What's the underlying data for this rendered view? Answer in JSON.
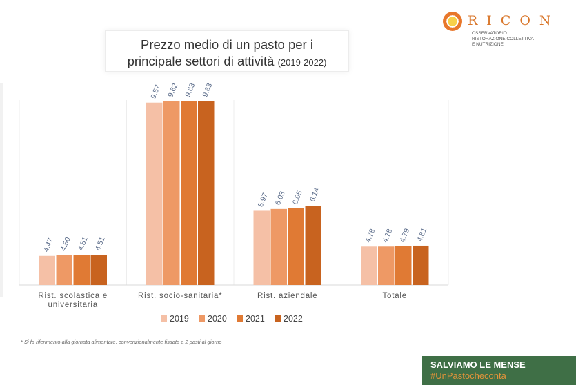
{
  "title": {
    "line1": "Prezzo medio di un pasto per i",
    "line2": "principale settori di attività",
    "years": "(2019-2022)"
  },
  "logo": {
    "word": "RICON",
    "sub1": "OSSERVATORIO",
    "sub2": "RISTORAZIONE COLLETTIVA",
    "sub3": "E NUTRIZIONE"
  },
  "chart_data": {
    "type": "bar",
    "title": "Prezzo medio di un pasto per i principale settori di attività (2019-2022)",
    "categories": [
      "Rist. scolastica e universitaria",
      "Rist. socio-sanitaria*",
      "Rist. aziendale",
      "Totale"
    ],
    "category_lines": [
      [
        "Rist. scolastica e",
        "universitaria"
      ],
      [
        "Rist. socio-sanitaria*"
      ],
      [
        "Rist. aziendale"
      ],
      [
        "Totale"
      ]
    ],
    "series": [
      {
        "name": "2019",
        "color": "#f5c0a6",
        "values": [
          4.47,
          9.57,
          5.97,
          4.78
        ],
        "labels": [
          "4.47",
          "9.57",
          "5.97",
          "4.78"
        ]
      },
      {
        "name": "2020",
        "color": "#ee9965",
        "values": [
          4.5,
          9.62,
          6.03,
          4.78
        ],
        "labels": [
          "4.50",
          "9.62",
          "6.03",
          "4.78"
        ]
      },
      {
        "name": "2021",
        "color": "#e07a34",
        "values": [
          4.51,
          9.63,
          6.05,
          4.79
        ],
        "labels": [
          "4.51",
          "9.63",
          "6.05",
          "4.79"
        ]
      },
      {
        "name": "2022",
        "color": "#c8631f",
        "values": [
          4.51,
          9.63,
          6.14,
          4.81
        ],
        "labels": [
          "4.51",
          "9.63",
          "6.14",
          "4.81"
        ]
      }
    ],
    "ylim": [
      3.5,
      10
    ],
    "xlabel": "",
    "ylabel": "",
    "legend": "bottom"
  },
  "footnote": "* Si fa riferimento alla giornata alimentare, convenzionalmente fissata a 2 pasti al giorno",
  "banner": {
    "line1": "SALVIAMO LE MENSE",
    "line2": "#UnPastocheconta"
  }
}
